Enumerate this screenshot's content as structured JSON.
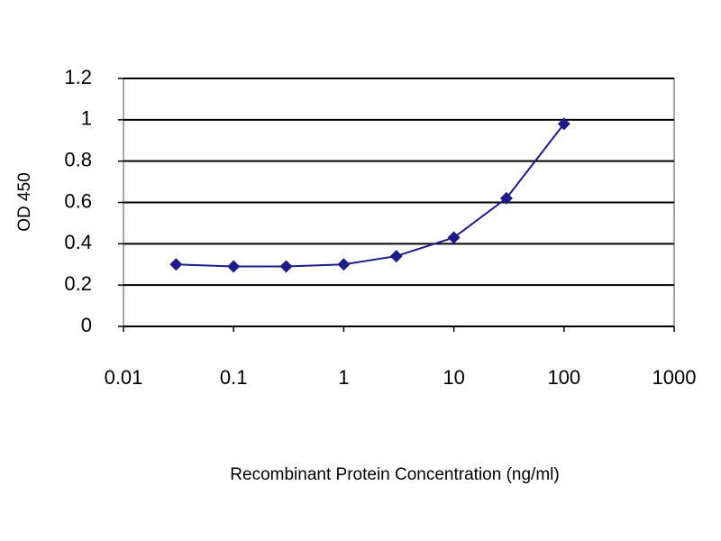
{
  "chart_data": {
    "type": "line",
    "x_label": "Recombinant Protein Concentration (ng/ml)",
    "y_label": "OD 450",
    "x": [
      0.03,
      0.1,
      0.3,
      1,
      3,
      10,
      30,
      100
    ],
    "values": [
      0.3,
      0.29,
      0.29,
      0.3,
      0.34,
      0.43,
      0.62,
      0.98
    ],
    "color": "#1c1c8a",
    "xlog": true,
    "xlim": [
      0.01,
      1000
    ],
    "xticks": [
      0.01,
      0.1,
      1,
      10,
      100,
      1000
    ],
    "ylim": [
      0,
      1.2
    ],
    "yticks": [
      0,
      0.2,
      0.4,
      0.6,
      0.8,
      1,
      1.2
    ],
    "grid": true
  }
}
